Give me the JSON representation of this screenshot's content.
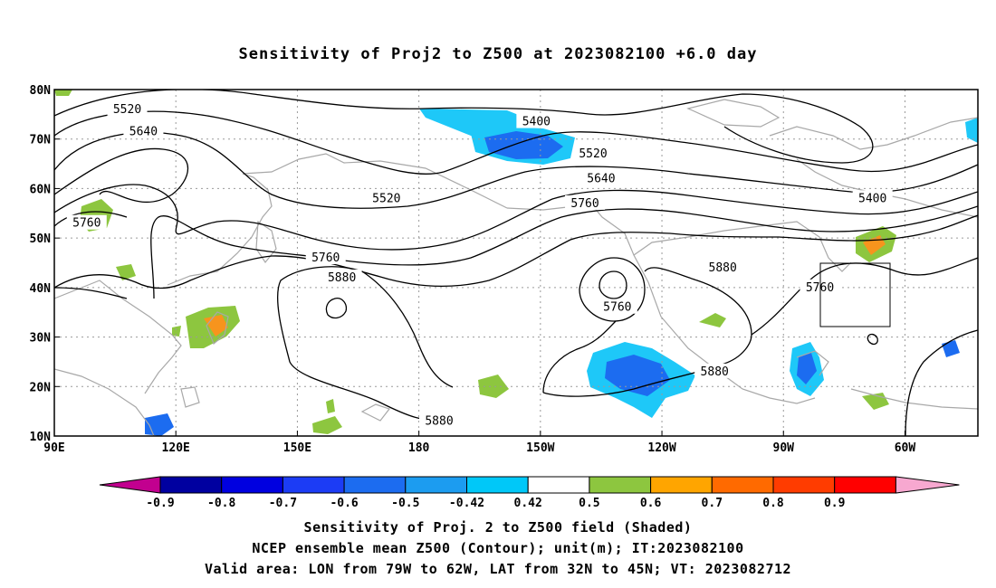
{
  "title": "Sensitivity of Proj2 to Z500 at 2023082100 +6.0 day",
  "map": {
    "lat_labels": [
      "80N",
      "70N",
      "60N",
      "50N",
      "40N",
      "30N",
      "20N",
      "10N"
    ],
    "lon_labels": [
      "90E",
      "120E",
      "150E",
      "180",
      "150W",
      "120W",
      "90W",
      "60W"
    ],
    "contour_labels": [
      {
        "text": "5520",
        "lon": 108,
        "lat": 76
      },
      {
        "text": "5640",
        "lon": 112,
        "lat": 71.5
      },
      {
        "text": "5760",
        "lon": 98,
        "lat": 53
      },
      {
        "text": "5520",
        "lon": 172,
        "lat": 58
      },
      {
        "text": "5400",
        "lon": -151,
        "lat": 73.5
      },
      {
        "text": "5520",
        "lon": -137,
        "lat": 67
      },
      {
        "text": "5640",
        "lon": -135,
        "lat": 62
      },
      {
        "text": "5760",
        "lon": -139,
        "lat": 57
      },
      {
        "text": "5400",
        "lon": -68,
        "lat": 58
      },
      {
        "text": "5760",
        "lon": 157,
        "lat": 46
      },
      {
        "text": "5880",
        "lon": 161,
        "lat": 42
      },
      {
        "text": "5760",
        "lon": -131,
        "lat": 36
      },
      {
        "text": "5880",
        "lon": -105,
        "lat": 44
      },
      {
        "text": "5760",
        "lon": -81,
        "lat": 40
      },
      {
        "text": "5880",
        "lon": -107,
        "lat": 23
      },
      {
        "text": "5880",
        "lon": -175,
        "lat": 13
      }
    ],
    "valid_box": {
      "lon_min": -79,
      "lon_max": -62,
      "lat_min": 32,
      "lat_max": 45
    },
    "shading_colors": {
      "pos_0_42_0_5": "#8dc63f",
      "pos_0_5_0_6": "#f7941d",
      "neg_0_42_0_5": "#1ec8f8",
      "neg_0_5_0_6": "#1c9cf0",
      "neg_0_6_0_7": "#1c6cf0"
    }
  },
  "colorbar": {
    "labels": [
      "-0.9",
      "-0.8",
      "-0.7",
      "-0.6",
      "-0.5",
      "-0.42",
      "0.42",
      "0.5",
      "0.6",
      "0.7",
      "0.8",
      "0.9"
    ],
    "colors": [
      "#c2008f",
      "#0000a0",
      "#0000e0",
      "#1c3cf5",
      "#1c6cf0",
      "#1c9cf0",
      "#00c8f8",
      "#ffffff",
      "#8dc63f",
      "#ffa500",
      "#ff6a00",
      "#ff3c00",
      "#ff0000",
      "#f7a8d0"
    ]
  },
  "footer": {
    "line1": "Sensitivity of Proj. 2 to Z500 field (Shaded)",
    "line2": "NCEP ensemble mean Z500 (Contour); unit(m); IT:2023082100",
    "line3": "Valid area: LON from 79W to 62W, LAT from 32N to 45N; VT: 2023082712"
  }
}
